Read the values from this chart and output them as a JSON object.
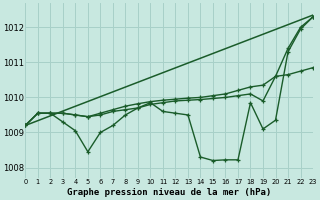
{
  "title": "Graphe pression niveau de la mer (hPa)",
  "background_color": "#c8e8e0",
  "grid_color": "#a8d0c8",
  "line_color": "#1a5c2a",
  "xlim": [
    0,
    23
  ],
  "ylim": [
    1007.7,
    1012.7
  ],
  "yticks": [
    1008,
    1009,
    1010,
    1011,
    1012
  ],
  "xticks": [
    0,
    1,
    2,
    3,
    4,
    5,
    6,
    7,
    8,
    9,
    10,
    11,
    12,
    13,
    14,
    15,
    16,
    17,
    18,
    19,
    20,
    21,
    22,
    23
  ],
  "series": [
    {
      "x": [
        0,
        23
      ],
      "y": [
        1009.2,
        1012.35
      ],
      "marker": null,
      "linewidth": 1.1
    },
    {
      "x": [
        0,
        1,
        2,
        3,
        4,
        5,
        6,
        7,
        8,
        9,
        10,
        11,
        12,
        13,
        14,
        15,
        16,
        17,
        18,
        19,
        20,
        21,
        22,
        23
      ],
      "y": [
        1009.2,
        1009.55,
        1009.55,
        1009.55,
        1009.5,
        1009.45,
        1009.55,
        1009.65,
        1009.75,
        1009.82,
        1009.88,
        1009.92,
        1009.95,
        1009.98,
        1010.0,
        1010.05,
        1010.1,
        1010.2,
        1010.3,
        1010.35,
        1010.6,
        1011.4,
        1012.0,
        1012.3
      ],
      "marker": "+",
      "linewidth": 1.0
    },
    {
      "x": [
        0,
        1,
        2,
        3,
        4,
        5,
        6,
        7,
        8,
        9,
        10,
        11,
        12,
        13,
        14,
        15,
        16,
        17,
        18,
        19,
        20,
        21,
        22,
        23
      ],
      "y": [
        1009.2,
        1009.55,
        1009.55,
        1009.55,
        1009.5,
        1009.45,
        1009.5,
        1009.6,
        1009.65,
        1009.7,
        1009.8,
        1009.85,
        1009.9,
        1009.92,
        1009.94,
        1009.97,
        1010.0,
        1010.05,
        1010.1,
        1009.9,
        1010.6,
        1010.65,
        1010.75,
        1010.85
      ],
      "marker": "+",
      "linewidth": 1.0
    },
    {
      "x": [
        0,
        1,
        2,
        3,
        4,
        5,
        6,
        7,
        8,
        9,
        10,
        11,
        12,
        13,
        14,
        15,
        16,
        17,
        18,
        19,
        20,
        21,
        22,
        23
      ],
      "y": [
        1009.2,
        1009.55,
        1009.55,
        1009.3,
        1009.05,
        1008.45,
        1009.0,
        1009.2,
        1009.5,
        1009.7,
        1009.85,
        1009.6,
        1009.55,
        1009.5,
        1008.3,
        1008.2,
        1008.22,
        1008.22,
        1009.85,
        1009.1,
        1009.35,
        1011.3,
        1011.95,
        1012.3
      ],
      "marker": "+",
      "linewidth": 1.0
    }
  ]
}
